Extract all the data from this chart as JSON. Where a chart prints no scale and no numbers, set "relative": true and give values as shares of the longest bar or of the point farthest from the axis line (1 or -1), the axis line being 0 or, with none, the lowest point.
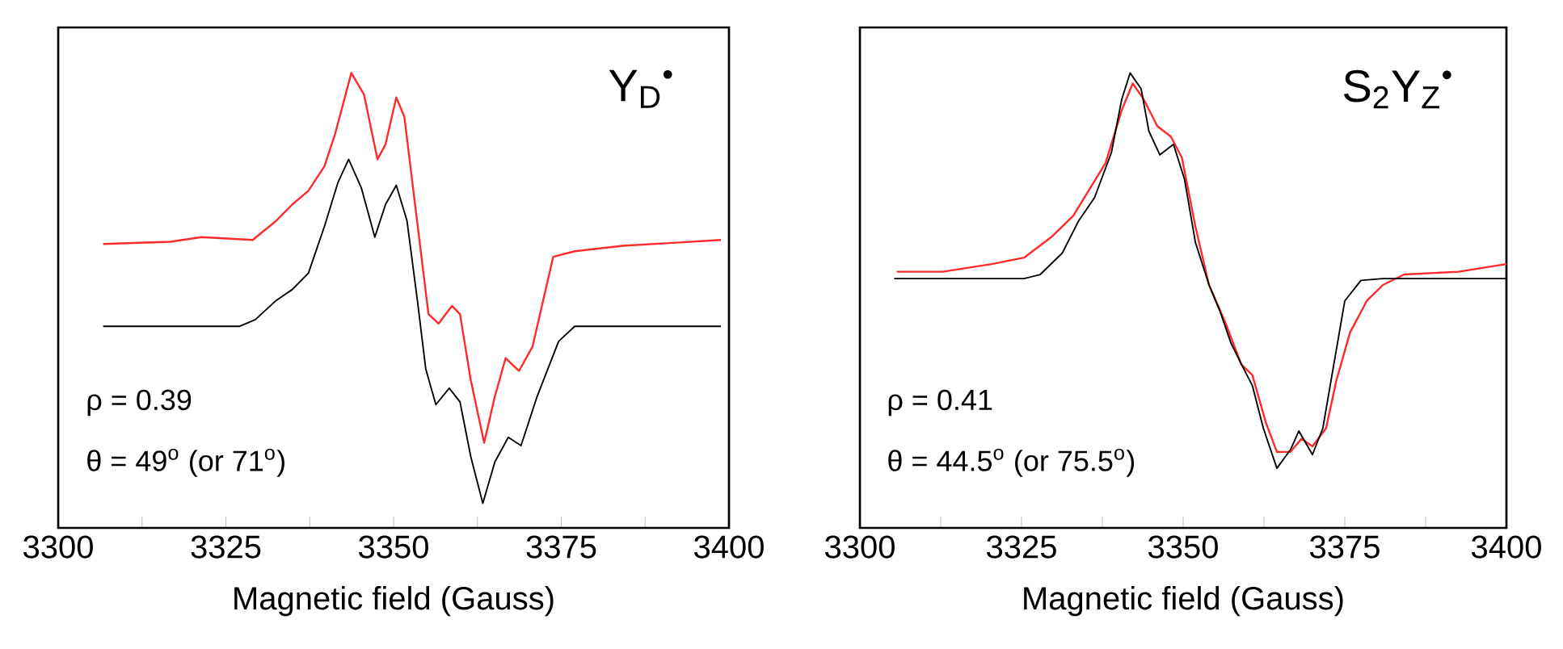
{
  "chart_data": [
    {
      "type": "line",
      "relative": true,
      "xlim": [
        3300,
        3400
      ],
      "xlabel": "Magnetic field (Gauss)",
      "xticks": [
        3300,
        {
          "value": 3312.5,
          "label": null
        },
        3325,
        {
          "value": 3337.5,
          "label": null
        },
        3350,
        {
          "value": 3362.5,
          "label": null
        },
        3375,
        {
          "value": 3387.5,
          "label": null
        },
        3400
      ],
      "annotations": [
        "Y$_{D}$$^{•}$",
        "ρ = 0.39",
        "θ = 49$^{o}$ (or 71$^{o}$)"
      ],
      "series": [
        {
          "color": "#ff2a2a",
          "x": [
            3306.7,
            3316.7,
            3321.4,
            3329.0,
            3332.5,
            3334.9,
            3337.3,
            3339.7,
            3341.3,
            3343.7,
            3345.6,
            3347.6,
            3348.8,
            3350.4,
            3351.6,
            3353.2,
            3355.2,
            3356.7,
            3358.7,
            3359.9,
            3361.5,
            3363.5,
            3365.1,
            3366.7,
            3368.7,
            3370.7,
            3373.8,
            3377.0,
            3384.1,
            3392.1,
            3398.8
          ],
          "values": [
            0.624,
            0.629,
            0.639,
            0.633,
            0.675,
            0.711,
            0.741,
            0.795,
            0.867,
            1.0,
            0.952,
            0.81,
            0.843,
            0.946,
            0.904,
            0.711,
            0.47,
            0.449,
            0.488,
            0.47,
            0.325,
            0.187,
            0.289,
            0.373,
            0.345,
            0.398,
            0.596,
            0.608,
            0.62,
            0.627,
            0.633
          ]
        },
        {
          "color": "#000000",
          "x": [
            3306.7,
            3327.0,
            3329.4,
            3332.5,
            3334.9,
            3337.3,
            3339.7,
            3341.7,
            3343.3,
            3345.2,
            3347.2,
            3348.8,
            3350.4,
            3352.0,
            3353.6,
            3354.8,
            3356.3,
            3358.3,
            3359.9,
            3361.5,
            3363.3,
            3365.1,
            3367.1,
            3369.0,
            3371.4,
            3374.6,
            3377.0,
            3398.8
          ],
          "values": [
            0.443,
            0.443,
            0.458,
            0.5,
            0.524,
            0.56,
            0.663,
            0.759,
            0.81,
            0.747,
            0.639,
            0.711,
            0.753,
            0.675,
            0.494,
            0.349,
            0.271,
            0.307,
            0.277,
            0.157,
            0.054,
            0.145,
            0.199,
            0.181,
            0.289,
            0.41,
            0.443,
            0.443
          ]
        }
      ]
    },
    {
      "type": "line",
      "relative": true,
      "xlim": [
        3300,
        3400
      ],
      "xlabel": "Magnetic field (Gauss)",
      "xticks": [
        3300,
        {
          "value": 3312.5,
          "label": null
        },
        3325,
        {
          "value": 3337.5,
          "label": null
        },
        3350,
        {
          "value": 3362.5,
          "label": null
        },
        3375,
        {
          "value": 3387.5,
          "label": null
        },
        3400
      ],
      "annotations": [
        "S$_{2}$Y$_{Z}$$^{•}$",
        "ρ = 0.41",
        "θ = 44.5$^{o}$ (or 75.5$^{o}$)"
      ],
      "series": [
        {
          "color": "#ff2a2a",
          "x": [
            3305.7,
            3312.8,
            3320.4,
            3325.4,
            3329.6,
            3333.0,
            3335.5,
            3338.0,
            3340.5,
            3342.2,
            3343.9,
            3346.0,
            3348.1,
            3349.8,
            3351.9,
            3354.0,
            3356.5,
            3359.0,
            3360.7,
            3362.8,
            3364.5,
            3366.6,
            3368.3,
            3370.0,
            3372.1,
            3373.7,
            3375.8,
            3378.4,
            3380.9,
            3384.2,
            3392.6,
            3400.0
          ],
          "values": [
            0.563,
            0.563,
            0.58,
            0.594,
            0.639,
            0.686,
            0.744,
            0.802,
            0.918,
            0.977,
            0.942,
            0.883,
            0.86,
            0.814,
            0.662,
            0.534,
            0.452,
            0.359,
            0.336,
            0.231,
            0.167,
            0.167,
            0.196,
            0.179,
            0.219,
            0.324,
            0.429,
            0.499,
            0.534,
            0.557,
            0.563,
            0.58
          ]
        },
        {
          "color": "#000000",
          "x": [
            3305.3,
            3325.4,
            3327.9,
            3331.3,
            3333.8,
            3336.3,
            3338.9,
            3340.5,
            3341.8,
            3343.5,
            3344.7,
            3346.4,
            3348.5,
            3350.2,
            3351.9,
            3354.0,
            3355.7,
            3357.4,
            3359.0,
            3360.7,
            3362.4,
            3364.5,
            3366.6,
            3367.9,
            3370.0,
            3371.6,
            3373.3,
            3375.0,
            3377.5,
            3380.9,
            3400.0
          ],
          "values": [
            0.548,
            0.548,
            0.557,
            0.604,
            0.674,
            0.726,
            0.825,
            0.942,
            1.0,
            0.965,
            0.872,
            0.82,
            0.843,
            0.767,
            0.627,
            0.534,
            0.476,
            0.406,
            0.36,
            0.313,
            0.219,
            0.131,
            0.172,
            0.213,
            0.161,
            0.219,
            0.359,
            0.499,
            0.544,
            0.548,
            0.548
          ]
        }
      ]
    }
  ]
}
